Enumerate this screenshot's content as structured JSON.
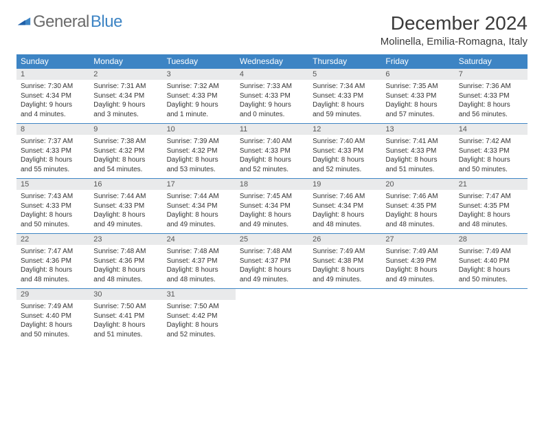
{
  "logo": {
    "word1": "General",
    "word2": "Blue"
  },
  "title": "December 2024",
  "location": "Molinella, Emilia-Romagna, Italy",
  "colors": {
    "header_bg": "#3d84c4",
    "header_text": "#ffffff",
    "daynum_bg": "#e9eaeb",
    "row_border": "#3d84c4",
    "body_text": "#333333",
    "logo_gray": "#6a6a6a",
    "logo_blue": "#3d84c4",
    "page_bg": "#ffffff"
  },
  "typography": {
    "title_fontsize": 28,
    "location_fontsize": 15,
    "weekday_fontsize": 12,
    "daynum_fontsize": 11,
    "body_fontsize": 10
  },
  "weekdays": [
    "Sunday",
    "Monday",
    "Tuesday",
    "Wednesday",
    "Thursday",
    "Friday",
    "Saturday"
  ],
  "weeks": [
    [
      {
        "n": "1",
        "sunrise": "Sunrise: 7:30 AM",
        "sunset": "Sunset: 4:34 PM",
        "daylight": "Daylight: 9 hours and 4 minutes."
      },
      {
        "n": "2",
        "sunrise": "Sunrise: 7:31 AM",
        "sunset": "Sunset: 4:34 PM",
        "daylight": "Daylight: 9 hours and 3 minutes."
      },
      {
        "n": "3",
        "sunrise": "Sunrise: 7:32 AM",
        "sunset": "Sunset: 4:33 PM",
        "daylight": "Daylight: 9 hours and 1 minute."
      },
      {
        "n": "4",
        "sunrise": "Sunrise: 7:33 AM",
        "sunset": "Sunset: 4:33 PM",
        "daylight": "Daylight: 9 hours and 0 minutes."
      },
      {
        "n": "5",
        "sunrise": "Sunrise: 7:34 AM",
        "sunset": "Sunset: 4:33 PM",
        "daylight": "Daylight: 8 hours and 59 minutes."
      },
      {
        "n": "6",
        "sunrise": "Sunrise: 7:35 AM",
        "sunset": "Sunset: 4:33 PM",
        "daylight": "Daylight: 8 hours and 57 minutes."
      },
      {
        "n": "7",
        "sunrise": "Sunrise: 7:36 AM",
        "sunset": "Sunset: 4:33 PM",
        "daylight": "Daylight: 8 hours and 56 minutes."
      }
    ],
    [
      {
        "n": "8",
        "sunrise": "Sunrise: 7:37 AM",
        "sunset": "Sunset: 4:33 PM",
        "daylight": "Daylight: 8 hours and 55 minutes."
      },
      {
        "n": "9",
        "sunrise": "Sunrise: 7:38 AM",
        "sunset": "Sunset: 4:32 PM",
        "daylight": "Daylight: 8 hours and 54 minutes."
      },
      {
        "n": "10",
        "sunrise": "Sunrise: 7:39 AM",
        "sunset": "Sunset: 4:32 PM",
        "daylight": "Daylight: 8 hours and 53 minutes."
      },
      {
        "n": "11",
        "sunrise": "Sunrise: 7:40 AM",
        "sunset": "Sunset: 4:33 PM",
        "daylight": "Daylight: 8 hours and 52 minutes."
      },
      {
        "n": "12",
        "sunrise": "Sunrise: 7:40 AM",
        "sunset": "Sunset: 4:33 PM",
        "daylight": "Daylight: 8 hours and 52 minutes."
      },
      {
        "n": "13",
        "sunrise": "Sunrise: 7:41 AM",
        "sunset": "Sunset: 4:33 PM",
        "daylight": "Daylight: 8 hours and 51 minutes."
      },
      {
        "n": "14",
        "sunrise": "Sunrise: 7:42 AM",
        "sunset": "Sunset: 4:33 PM",
        "daylight": "Daylight: 8 hours and 50 minutes."
      }
    ],
    [
      {
        "n": "15",
        "sunrise": "Sunrise: 7:43 AM",
        "sunset": "Sunset: 4:33 PM",
        "daylight": "Daylight: 8 hours and 50 minutes."
      },
      {
        "n": "16",
        "sunrise": "Sunrise: 7:44 AM",
        "sunset": "Sunset: 4:33 PM",
        "daylight": "Daylight: 8 hours and 49 minutes."
      },
      {
        "n": "17",
        "sunrise": "Sunrise: 7:44 AM",
        "sunset": "Sunset: 4:34 PM",
        "daylight": "Daylight: 8 hours and 49 minutes."
      },
      {
        "n": "18",
        "sunrise": "Sunrise: 7:45 AM",
        "sunset": "Sunset: 4:34 PM",
        "daylight": "Daylight: 8 hours and 49 minutes."
      },
      {
        "n": "19",
        "sunrise": "Sunrise: 7:46 AM",
        "sunset": "Sunset: 4:34 PM",
        "daylight": "Daylight: 8 hours and 48 minutes."
      },
      {
        "n": "20",
        "sunrise": "Sunrise: 7:46 AM",
        "sunset": "Sunset: 4:35 PM",
        "daylight": "Daylight: 8 hours and 48 minutes."
      },
      {
        "n": "21",
        "sunrise": "Sunrise: 7:47 AM",
        "sunset": "Sunset: 4:35 PM",
        "daylight": "Daylight: 8 hours and 48 minutes."
      }
    ],
    [
      {
        "n": "22",
        "sunrise": "Sunrise: 7:47 AM",
        "sunset": "Sunset: 4:36 PM",
        "daylight": "Daylight: 8 hours and 48 minutes."
      },
      {
        "n": "23",
        "sunrise": "Sunrise: 7:48 AM",
        "sunset": "Sunset: 4:36 PM",
        "daylight": "Daylight: 8 hours and 48 minutes."
      },
      {
        "n": "24",
        "sunrise": "Sunrise: 7:48 AM",
        "sunset": "Sunset: 4:37 PM",
        "daylight": "Daylight: 8 hours and 48 minutes."
      },
      {
        "n": "25",
        "sunrise": "Sunrise: 7:48 AM",
        "sunset": "Sunset: 4:37 PM",
        "daylight": "Daylight: 8 hours and 49 minutes."
      },
      {
        "n": "26",
        "sunrise": "Sunrise: 7:49 AM",
        "sunset": "Sunset: 4:38 PM",
        "daylight": "Daylight: 8 hours and 49 minutes."
      },
      {
        "n": "27",
        "sunrise": "Sunrise: 7:49 AM",
        "sunset": "Sunset: 4:39 PM",
        "daylight": "Daylight: 8 hours and 49 minutes."
      },
      {
        "n": "28",
        "sunrise": "Sunrise: 7:49 AM",
        "sunset": "Sunset: 4:40 PM",
        "daylight": "Daylight: 8 hours and 50 minutes."
      }
    ],
    [
      {
        "n": "29",
        "sunrise": "Sunrise: 7:49 AM",
        "sunset": "Sunset: 4:40 PM",
        "daylight": "Daylight: 8 hours and 50 minutes."
      },
      {
        "n": "30",
        "sunrise": "Sunrise: 7:50 AM",
        "sunset": "Sunset: 4:41 PM",
        "daylight": "Daylight: 8 hours and 51 minutes."
      },
      {
        "n": "31",
        "sunrise": "Sunrise: 7:50 AM",
        "sunset": "Sunset: 4:42 PM",
        "daylight": "Daylight: 8 hours and 52 minutes."
      },
      null,
      null,
      null,
      null
    ]
  ]
}
